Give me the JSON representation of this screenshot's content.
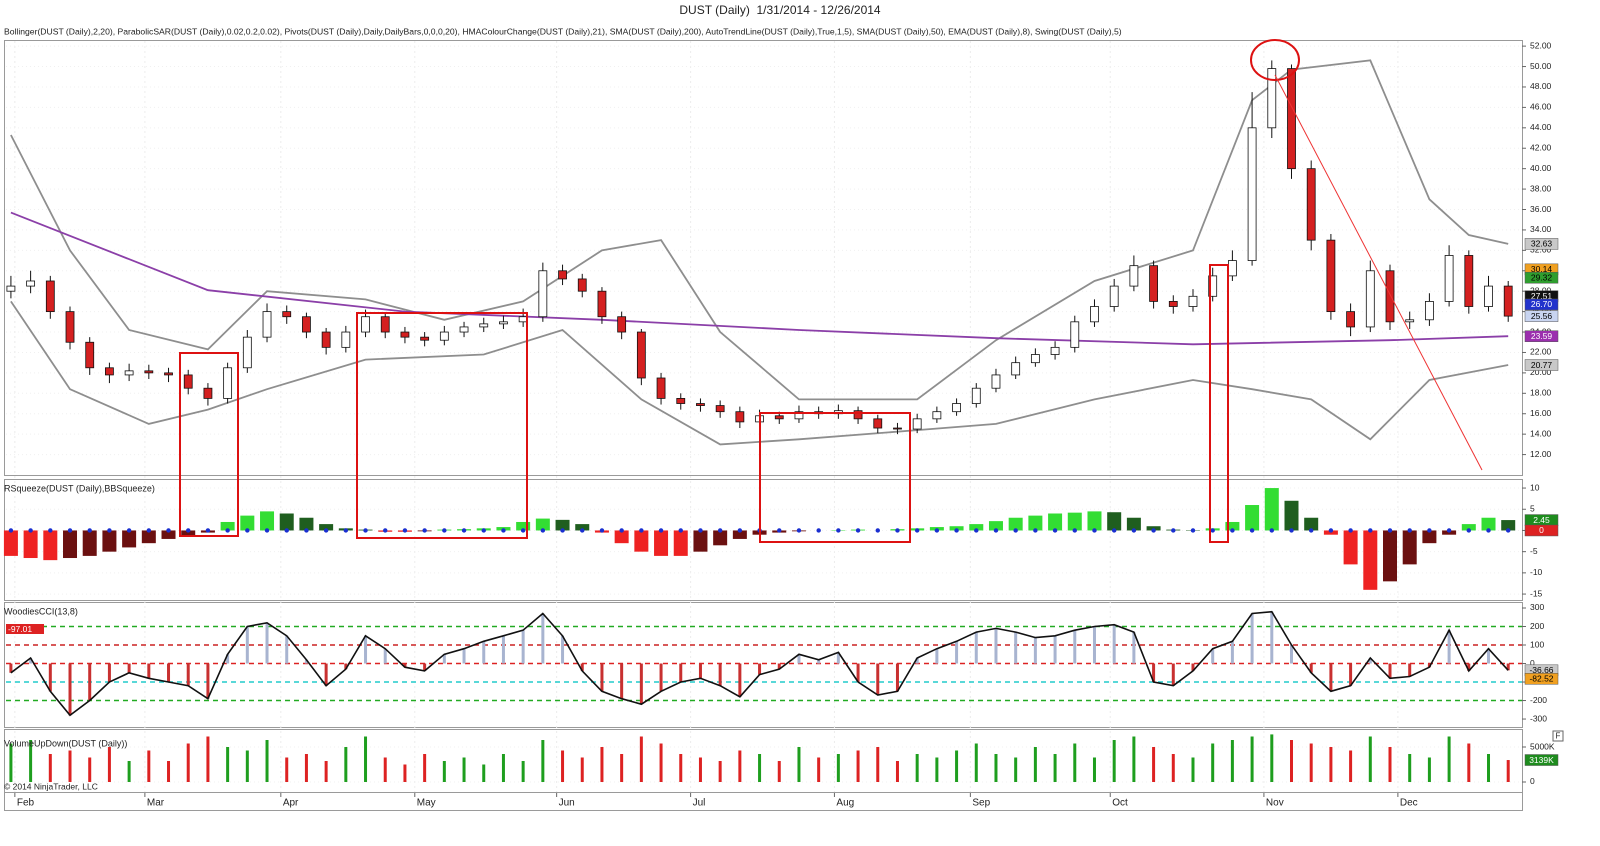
{
  "copyright": "© 2014 NinjaTrader, LLC",
  "x_axis": {
    "xlim": [
      -0.3,
      76.7
    ],
    "xticks": [
      {
        "value": 0.2,
        "label": "Feb"
      },
      {
        "value": 6.8,
        "label": "Mar"
      },
      {
        "value": 13.7,
        "label": "Apr"
      },
      {
        "value": 20.5,
        "label": "May"
      },
      {
        "value": 27.7,
        "label": "Jun"
      },
      {
        "value": 34.5,
        "label": "Jul"
      },
      {
        "value": 41.8,
        "label": "Aug"
      },
      {
        "value": 48.7,
        "label": "Sep"
      },
      {
        "value": 55.8,
        "label": "Oct"
      },
      {
        "value": 63.6,
        "label": "Nov"
      },
      {
        "value": 70.4,
        "label": "Dec"
      }
    ]
  },
  "chart_data": [
    {
      "type": "candlestick",
      "title": "DUST (Daily)  1/31/2014 - 12/26/2014",
      "subtitle": "Bollinger(DUST (Daily),2,20), ParabolicSAR(DUST (Daily),0.02,0.2,0.02), Pivots(DUST (Daily),Daily,DailyBars,0,0,0,20), HMAColourChange(DUST (Daily),21), SMA(DUST (Daily),200), AutoTrendLine(DUST (Daily),True,1,5), SMA(DUST (Daily),50), EMA(DUST (Daily),8), Swing(DUST (Daily),5)",
      "up_color": "#ffffff",
      "down_color": "#d42020",
      "open": [
        28,
        28.5,
        29,
        26,
        23,
        20.5,
        19.8,
        20.2,
        20,
        19.8,
        18.5,
        17.5,
        20.5,
        23.5,
        26,
        25.5,
        24,
        22.5,
        24,
        25.5,
        24,
        23.5,
        23.2,
        24,
        24.5,
        24.8,
        25,
        25.5,
        30,
        29.2,
        28,
        25.5,
        24,
        19.5,
        17.5,
        17,
        16.8,
        16.2,
        15.2,
        15.8,
        15.5,
        16.2,
        16,
        16.3,
        15.5,
        14.6,
        14.5,
        15.5,
        16.2,
        17,
        18.5,
        19.8,
        21,
        21.8,
        22.5,
        25,
        26.5,
        28.5,
        30.5,
        27,
        26.5,
        27.5,
        29.5,
        31,
        44,
        49.8,
        40,
        33,
        26,
        24.5,
        30,
        25,
        25.2,
        27,
        31.5,
        26.5,
        28.5
      ],
      "high": [
        29.5,
        30,
        29.5,
        26.5,
        23.5,
        21,
        20.9,
        20.8,
        20.5,
        20.3,
        19,
        21,
        24.2,
        26.8,
        26.6,
        25.9,
        24.4,
        24.6,
        26.2,
        25.9,
        24.5,
        24,
        24.6,
        25,
        25.4,
        25.6,
        26.3,
        30.8,
        30.6,
        29.7,
        28.4,
        26,
        24.3,
        20,
        18,
        17.5,
        17.3,
        16.7,
        16.4,
        16.2,
        16.8,
        16.7,
        16.9,
        16.7,
        15.9,
        15.1,
        16,
        16.7,
        17.5,
        19,
        20.4,
        21.6,
        22.4,
        23.1,
        25.6,
        27.2,
        29.2,
        31.5,
        31,
        27.6,
        28.2,
        30.3,
        32,
        47.5,
        50.6,
        50.2,
        40.8,
        33.6,
        26.8,
        31,
        30.6,
        26,
        27.8,
        32.5,
        32,
        29.5,
        29
      ],
      "low": [
        27.3,
        27.8,
        25.3,
        22.3,
        19.8,
        19,
        19.2,
        19.4,
        19.1,
        17.9,
        16.8,
        17,
        20,
        23,
        24.8,
        23.4,
        21.8,
        22,
        23.5,
        23.4,
        22.9,
        22.6,
        22.7,
        23.5,
        24,
        24.3,
        24.5,
        25,
        28.6,
        27.4,
        24.8,
        23.3,
        18.8,
        16.9,
        16.4,
        16.2,
        15.6,
        14.6,
        14.8,
        15,
        15.1,
        15.5,
        15.5,
        15,
        14.1,
        14,
        14.1,
        15.1,
        15.8,
        16.6,
        18.1,
        19.4,
        20.6,
        21.3,
        22,
        24.5,
        26,
        28,
        26.3,
        25.8,
        26,
        27,
        29,
        30.5,
        43,
        39,
        32,
        25.2,
        23.6,
        24,
        24.2,
        24.3,
        24.6,
        26.5,
        25.8,
        26,
        25
      ],
      "close": [
        28.5,
        29,
        26,
        23,
        20.5,
        19.8,
        20.2,
        20,
        19.8,
        18.5,
        17.5,
        20.5,
        23.5,
        26,
        25.5,
        24,
        22.5,
        24,
        25.5,
        24,
        23.5,
        23.2,
        24,
        24.5,
        24.8,
        25,
        25.5,
        30,
        29.2,
        28,
        25.5,
        24,
        19.5,
        17.5,
        17,
        16.8,
        16.2,
        15.2,
        15.8,
        15.5,
        16.2,
        16,
        16.3,
        15.5,
        14.6,
        14.5,
        15.5,
        16.2,
        17,
        18.5,
        19.8,
        21,
        21.8,
        22.5,
        25,
        26.5,
        28.5,
        30.5,
        27,
        26.5,
        27.5,
        29.5,
        31,
        44,
        49.8,
        40,
        33,
        26,
        24.5,
        30,
        25,
        25.2,
        27,
        31.5,
        26.5,
        28.5,
        25.56
      ],
      "lines": [
        {
          "color": "#8e8e8e",
          "x": [
            0,
            3,
            6,
            10,
            13,
            18,
            22,
            26,
            30,
            33,
            36,
            40,
            46,
            50,
            55,
            60,
            63,
            65,
            69,
            72,
            74,
            76
          ],
          "values": [
            43.3,
            32,
            24.2,
            22.3,
            28,
            27.2,
            25.2,
            27,
            32,
            33,
            24,
            17.4,
            17.4,
            23.2,
            29,
            32,
            46.7,
            49.7,
            50.6,
            37,
            33.5,
            32.63
          ]
        },
        {
          "color": "#8e8e8e",
          "x": [
            0,
            3,
            7,
            10,
            13,
            18,
            24,
            28,
            32,
            36,
            40,
            46,
            50,
            55,
            60,
            63,
            66,
            69,
            72,
            76
          ],
          "values": [
            27,
            18.4,
            15,
            16.4,
            18.4,
            21.3,
            21.8,
            24.2,
            17.4,
            13,
            13.5,
            14.4,
            15,
            17.4,
            19.3,
            18.4,
            17.4,
            13.5,
            19.3,
            20.77
          ]
        },
        {
          "color": "#8b3fa8",
          "x": [
            0,
            10,
            20,
            30,
            40,
            50,
            60,
            70,
            76
          ],
          "values": [
            35.7,
            28.1,
            26,
            25.2,
            24.2,
            23.4,
            22.8,
            23.2,
            23.59
          ]
        }
      ],
      "ylim": [
        10,
        52.6
      ],
      "yticks": [
        {
          "value": 12,
          "label": "12.00"
        },
        {
          "value": 14,
          "label": "14.00"
        },
        {
          "value": 16,
          "label": "16.00"
        },
        {
          "value": 18,
          "label": "18.00"
        },
        {
          "value": 20,
          "label": "20.00"
        },
        {
          "value": 22,
          "label": "22.00"
        },
        {
          "value": 24,
          "label": "24.00"
        },
        {
          "value": 26,
          "label": "26.00"
        },
        {
          "value": 28,
          "label": "28.00"
        },
        {
          "value": 30,
          "label": "30.00"
        },
        {
          "value": 32,
          "label": "32.00"
        },
        {
          "value": 34,
          "label": "34.00"
        },
        {
          "value": 36,
          "label": "36.00"
        },
        {
          "value": 38,
          "label": "38.00"
        },
        {
          "value": 40,
          "label": "40.00"
        },
        {
          "value": 42,
          "label": "42.00"
        },
        {
          "value": 44,
          "label": "44.00"
        },
        {
          "value": 46,
          "label": "46.00"
        },
        {
          "value": 48,
          "label": "48.00"
        },
        {
          "value": 50,
          "label": "50.00"
        },
        {
          "value": 52,
          "label": "52.00"
        }
      ],
      "tags": [
        {
          "value": 32.63,
          "color": "#c8c8c8",
          "text_color": "#000000"
        },
        {
          "value": 30.14,
          "color": "#f0a020",
          "text_color": "#000000"
        },
        {
          "value": 29.32,
          "color": "#2e9e2e",
          "text_color": "#000000"
        },
        {
          "value": 27.51,
          "color": "#111111",
          "text_color": "#ffffff"
        },
        {
          "value": 26.7,
          "label": "26.70",
          "color": "#2233cc",
          "text_color": "#ffffff"
        },
        {
          "value": 25.56,
          "color": "#c8d4f0",
          "text_color": "#000000"
        },
        {
          "value": 23.59,
          "color": "#9b2fae",
          "text_color": "#ffffff"
        },
        {
          "value": 20.77,
          "color": "#c8c8c8",
          "text_color": "#000000"
        }
      ]
    },
    {
      "type": "histogram_oscillator",
      "title": "RSqueeze(DUST (Daily),BBSqueeze)",
      "colors": {
        "pos_rising": "#33dd33",
        "pos_falling": "#1f5e1f",
        "neg_falling": "#ee2222",
        "neg_rising": "#6b1010"
      },
      "dot_color": "#1a2fd0",
      "values": [
        -6,
        -6.5,
        -7,
        -6.5,
        -6,
        -5,
        -4,
        -3,
        -2,
        -1.5,
        -0.5,
        2,
        3.5,
        4.5,
        4,
        3,
        1.5,
        0.5,
        0.2,
        -0.3,
        -0.3,
        -0.2,
        0.2,
        0.3,
        0.5,
        0.8,
        2,
        2.8,
        2.5,
        1.5,
        -0.5,
        -3,
        -5,
        -6,
        -6,
        -5,
        -3.5,
        -2,
        -1,
        -0.5,
        -0.2,
        0,
        0.1,
        0.2,
        0,
        0.3,
        0.5,
        0.8,
        1,
        1.5,
        2.2,
        3,
        3.5,
        4,
        4.2,
        4.5,
        4.3,
        3,
        1,
        0.2,
        0.1,
        0.5,
        2,
        6,
        10,
        7,
        3,
        -1,
        -8,
        -14,
        -12,
        -8,
        -3,
        -1,
        1.5,
        3,
        2.45
      ],
      "ylim": [
        -16.4,
        11.9
      ],
      "yticks": [
        -15,
        -10,
        -5,
        0,
        5,
        10
      ],
      "tags": [
        {
          "value": 2.45,
          "color": "#1e8c1e",
          "text_color": "#ffffff"
        },
        {
          "value": 0,
          "color": "#dd2222",
          "text_color": "#ffffff"
        }
      ]
    },
    {
      "type": "cci",
      "title": "WoodiesCCI(13,8)",
      "line_color": "#111111",
      "pos_color": "#a8b4d0",
      "neg_color": "#c83030",
      "values": [
        -50,
        30,
        -150,
        -280,
        -200,
        -100,
        -50,
        -80,
        -100,
        -120,
        -190,
        50,
        200,
        220,
        150,
        20,
        -120,
        -30,
        150,
        80,
        -20,
        -40,
        50,
        80,
        120,
        150,
        180,
        270,
        150,
        -40,
        -150,
        -190,
        -220,
        -150,
        -100,
        -80,
        -120,
        -180,
        -60,
        -30,
        50,
        20,
        60,
        -100,
        -170,
        -150,
        30,
        80,
        120,
        170,
        190,
        170,
        140,
        150,
        180,
        200,
        210,
        170,
        -100,
        -120,
        -40,
        80,
        120,
        270,
        280,
        100,
        -50,
        -150,
        -120,
        30,
        -80,
        -70,
        -20,
        180,
        -40,
        80,
        -36.66
      ],
      "ylim": [
        -343,
        327
      ],
      "yticks": [
        -300,
        -200,
        -100,
        0,
        100,
        200,
        300
      ],
      "grid_colors": [
        null,
        "#22aa22",
        "#22cccc",
        "#dd2222",
        "#cc2222",
        "#22aa22",
        null
      ],
      "tags": [
        {
          "value": -36.66,
          "color": "#c8c8c8",
          "text_color": "#000000"
        },
        {
          "value": -82.52,
          "color": "#f0a020",
          "text_color": "#000000"
        }
      ],
      "corner_tag": {
        "value": -97.01,
        "color": "#dd2222",
        "text_color": "#ffffff"
      }
    },
    {
      "type": "volume",
      "title": "VolumeUpDown(DUST (Daily))",
      "up_color": "#1e9e1e",
      "down_color": "#dd2222",
      "values": [
        5500,
        6000,
        4000,
        4500,
        3500,
        5000,
        3000,
        4500,
        3000,
        5500,
        6500,
        5000,
        4500,
        6000,
        3500,
        4000,
        3000,
        5000,
        6500,
        3500,
        2500,
        4000,
        3000,
        3500,
        2500,
        4000,
        3000,
        6000,
        4500,
        3500,
        5000,
        4000,
        6500,
        5500,
        4000,
        3500,
        3000,
        4500,
        4000,
        3000,
        5000,
        3500,
        4000,
        4500,
        5000,
        3000,
        4000,
        3500,
        4500,
        5500,
        4000,
        3500,
        5000,
        4000,
        5500,
        3500,
        6000,
        6500,
        5000,
        4000,
        3500,
        5500,
        6000,
        6500,
        6800,
        6000,
        5500,
        5000,
        4500,
        6500,
        5000,
        4000,
        3500,
        6500,
        5500,
        4000,
        3139
      ],
      "ylim": [
        -1430,
        7430
      ],
      "yticks": [
        0,
        {
          "value": 5000,
          "label": "5000K"
        }
      ],
      "tags": [
        {
          "value": 3139,
          "label": "3139K",
          "color": "#1e8c1e",
          "text_color": "#ffffff"
        }
      ],
      "flag": "F"
    }
  ]
}
